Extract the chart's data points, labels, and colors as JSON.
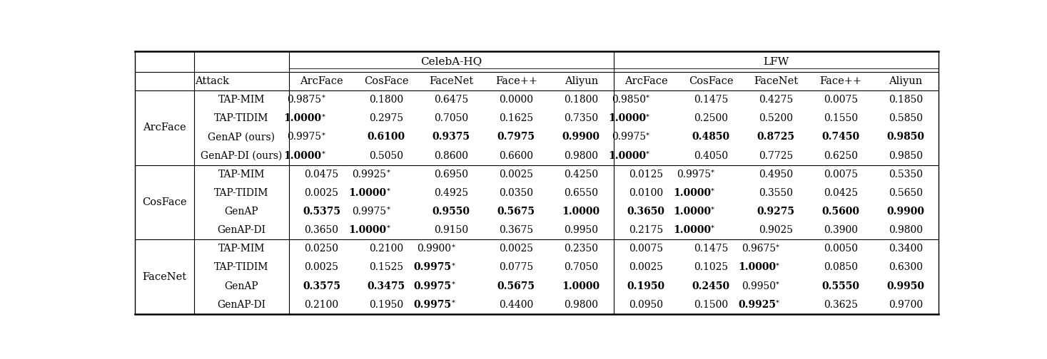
{
  "col_groups": [
    "CelebA-HQ",
    "LFW"
  ],
  "sub_cols": [
    "ArcFace",
    "CosFace",
    "FaceNet",
    "Face++",
    "Aliyun"
  ],
  "row_groups": [
    "ArcFace",
    "CosFace",
    "FaceNet"
  ],
  "attacks_display": [
    [
      "TAP-MIM",
      "TAP-TIDIM",
      "GenAP (ours)",
      "GenAP-DI (ours)"
    ],
    [
      "TAP-MIM",
      "TAP-TIDIM",
      "GenAP",
      "GenAP-DI"
    ],
    [
      "TAP-MIM",
      "TAP-TIDIM",
      "GenAP",
      "GenAP-DI"
    ]
  ],
  "data": {
    "CelebA-HQ": {
      "ArcFace": {
        "TAP-MIM": [
          "0.9875*",
          "0.1800",
          "0.6475",
          "0.0000",
          "0.1800"
        ],
        "TAP-TIDIM": [
          "1.0000*",
          "0.2975",
          "0.7050",
          "0.1625",
          "0.7350"
        ],
        "GenAP (ours)": [
          "0.9975*",
          "0.6100",
          "0.9375",
          "0.7975",
          "0.9900"
        ],
        "GenAP-DI (ours)": [
          "1.0000*",
          "0.5050",
          "0.8600",
          "0.6600",
          "0.9800"
        ]
      },
      "CosFace": {
        "TAP-MIM": [
          "0.0475",
          "0.9925*",
          "0.6950",
          "0.0025",
          "0.4250"
        ],
        "TAP-TIDIM": [
          "0.0025",
          "1.0000*",
          "0.4925",
          "0.0350",
          "0.6550"
        ],
        "GenAP": [
          "0.5375",
          "0.9975*",
          "0.9550",
          "0.5675",
          "1.0000"
        ],
        "GenAP-DI": [
          "0.3650",
          "1.0000*",
          "0.9150",
          "0.3675",
          "0.9950"
        ]
      },
      "FaceNet": {
        "TAP-MIM": [
          "0.0250",
          "0.2100",
          "0.9900*",
          "0.0025",
          "0.2350"
        ],
        "TAP-TIDIM": [
          "0.0025",
          "0.1525",
          "0.9975*",
          "0.0775",
          "0.7050"
        ],
        "GenAP": [
          "0.3575",
          "0.3475",
          "0.9975*",
          "0.5675",
          "1.0000"
        ],
        "GenAP-DI": [
          "0.2100",
          "0.1950",
          "0.9975*",
          "0.4400",
          "0.9800"
        ]
      }
    },
    "LFW": {
      "ArcFace": {
        "TAP-MIM": [
          "0.9850*",
          "0.1475",
          "0.4275",
          "0.0075",
          "0.1850"
        ],
        "TAP-TIDIM": [
          "1.0000*",
          "0.2500",
          "0.5200",
          "0.1550",
          "0.5850"
        ],
        "GenAP (ours)": [
          "0.9975*",
          "0.4850",
          "0.8725",
          "0.7450",
          "0.9850"
        ],
        "GenAP-DI (ours)": [
          "1.0000*",
          "0.4050",
          "0.7725",
          "0.6250",
          "0.9850"
        ]
      },
      "CosFace": {
        "TAP-MIM": [
          "0.0125",
          "0.9975*",
          "0.4950",
          "0.0075",
          "0.5350"
        ],
        "TAP-TIDIM": [
          "0.0100",
          "1.0000*",
          "0.3550",
          "0.0425",
          "0.5650"
        ],
        "GenAP": [
          "0.3650",
          "1.0000*",
          "0.9275",
          "0.5600",
          "0.9900"
        ],
        "GenAP-DI": [
          "0.2175",
          "1.0000*",
          "0.9025",
          "0.3900",
          "0.9800"
        ]
      },
      "FaceNet": {
        "TAP-MIM": [
          "0.0075",
          "0.1475",
          "0.9675*",
          "0.0050",
          "0.3400"
        ],
        "TAP-TIDIM": [
          "0.0025",
          "0.1025",
          "1.0000*",
          "0.0850",
          "0.6300"
        ],
        "GenAP": [
          "0.1950",
          "0.2450",
          "0.9950*",
          "0.5550",
          "0.9950"
        ],
        "GenAP-DI": [
          "0.0950",
          "0.1500",
          "0.9925*",
          "0.3625",
          "0.9700"
        ]
      }
    }
  },
  "bold": {
    "CelebA-HQ": {
      "ArcFace": {
        "TAP-MIM": [
          false,
          false,
          false,
          false,
          false
        ],
        "TAP-TIDIM": [
          true,
          false,
          false,
          false,
          false
        ],
        "GenAP (ours)": [
          false,
          true,
          true,
          true,
          true
        ],
        "GenAP-DI (ours)": [
          true,
          false,
          false,
          false,
          false
        ]
      },
      "CosFace": {
        "TAP-MIM": [
          false,
          false,
          false,
          false,
          false
        ],
        "TAP-TIDIM": [
          false,
          true,
          false,
          false,
          false
        ],
        "GenAP": [
          true,
          false,
          true,
          true,
          true
        ],
        "GenAP-DI": [
          false,
          true,
          false,
          false,
          false
        ]
      },
      "FaceNet": {
        "TAP-MIM": [
          false,
          false,
          false,
          false,
          false
        ],
        "TAP-TIDIM": [
          false,
          false,
          true,
          false,
          false
        ],
        "GenAP": [
          true,
          true,
          true,
          true,
          true
        ],
        "GenAP-DI": [
          false,
          false,
          true,
          false,
          false
        ]
      }
    },
    "LFW": {
      "ArcFace": {
        "TAP-MIM": [
          false,
          false,
          false,
          false,
          false
        ],
        "TAP-TIDIM": [
          true,
          false,
          false,
          false,
          false
        ],
        "GenAP (ours)": [
          false,
          true,
          true,
          true,
          true
        ],
        "GenAP-DI (ours)": [
          true,
          false,
          false,
          false,
          false
        ]
      },
      "CosFace": {
        "TAP-MIM": [
          false,
          false,
          false,
          false,
          false
        ],
        "TAP-TIDIM": [
          false,
          true,
          false,
          false,
          false
        ],
        "GenAP": [
          true,
          true,
          true,
          true,
          true
        ],
        "GenAP-DI": [
          false,
          true,
          false,
          false,
          false
        ]
      },
      "FaceNet": {
        "TAP-MIM": [
          false,
          false,
          false,
          false,
          false
        ],
        "TAP-TIDIM": [
          false,
          false,
          true,
          false,
          false
        ],
        "GenAP": [
          true,
          true,
          false,
          true,
          true
        ],
        "GenAP-DI": [
          false,
          false,
          true,
          false,
          false
        ]
      }
    }
  }
}
